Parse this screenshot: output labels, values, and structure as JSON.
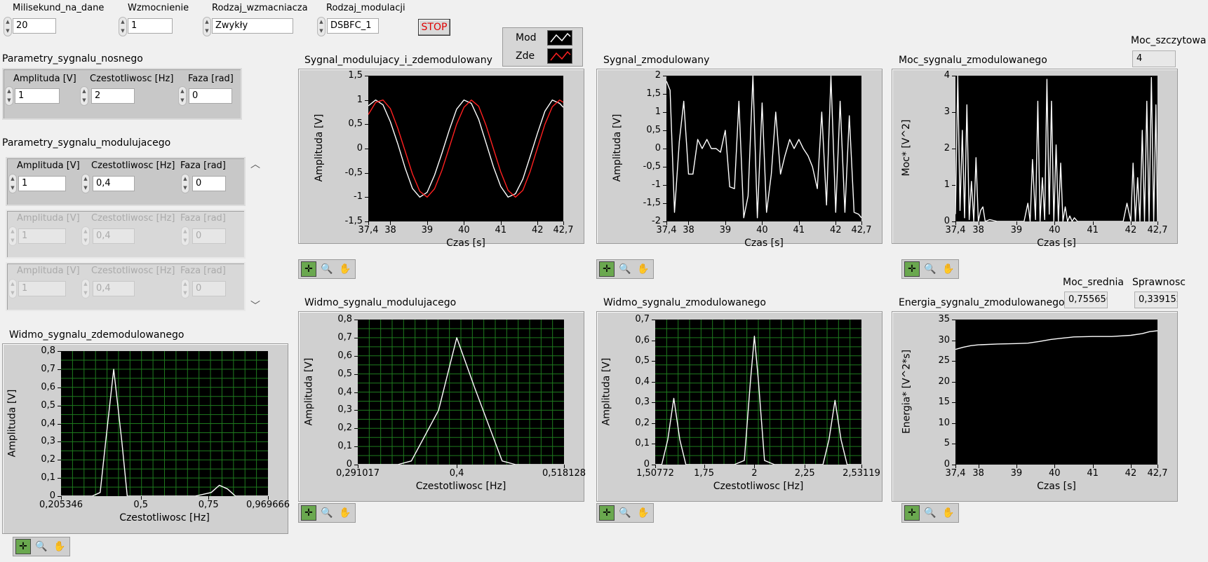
{
  "controls": {
    "milisekund": {
      "label": "Milisekund_na_dane",
      "value": "20"
    },
    "wzmocnienie": {
      "label": "Wzmocnienie",
      "value": "1"
    },
    "rodzaj_wzm": {
      "label": "Rodzaj_wzmacniacza",
      "value": "Zwykły"
    },
    "rodzaj_mod": {
      "label": "Rodzaj_modulacji",
      "value": "DSBFC_1"
    },
    "stop_label": "STOP"
  },
  "nosny": {
    "title": "Parametry_sygnalu_nosnego",
    "amp_label": "Amplituda [V]",
    "freq_label": "Czestotliwosc [Hz]",
    "phase_label": "Faza [rad]",
    "amp": "1",
    "freq": "2",
    "phase": "0"
  },
  "modulujacy": {
    "title": "Parametry_sygnalu_modulujacego",
    "rows": [
      {
        "amp_label": "Amplituda [V]",
        "freq_label": "Czestotliwosc [Hz]",
        "phase_label": "Faza [rad]",
        "amp": "1",
        "freq": "0,4",
        "phase": "0"
      },
      {
        "amp_label": "Amplituda [V]",
        "freq_label": "Czestotliwosc [Hz]",
        "phase_label": "Faza [rad]",
        "amp": "1",
        "freq": "0,4",
        "phase": "0"
      },
      {
        "amp_label": "Amplituda [V]",
        "freq_label": "Czestotliwosc [Hz]",
        "phase_label": "Faza [rad]",
        "amp": "1",
        "freq": "0,4",
        "phase": "0"
      }
    ]
  },
  "legend": {
    "items": [
      {
        "name": "Mod",
        "color": "#ffffff"
      },
      {
        "name": "Zde",
        "color": "#ff2020"
      }
    ]
  },
  "indicators": {
    "moc_szczytowa": {
      "label": "Moc_szczytowa",
      "value": "4"
    },
    "moc_srednia": {
      "label": "Moc_srednia",
      "value": "0,755656"
    },
    "sprawnosc": {
      "label": "Sprawnosc",
      "value": "0,339152"
    }
  },
  "palette_icons": [
    "crosshair-icon",
    "zoom-icon",
    "hand-icon"
  ],
  "chart_data": [
    {
      "id": "g1",
      "type": "line",
      "title": "Sygnal_modulujacy_i_zdemodulowany",
      "xlabel": "Czas [s]",
      "ylabel": "Amplituda [V]",
      "xlim": [
        37.4,
        42.7
      ],
      "ylim": [
        -1.5,
        1.5
      ],
      "xticks": [
        37.4,
        38,
        39,
        40,
        41,
        42,
        42.7
      ],
      "xtick_labels": [
        "37,4",
        "38",
        "39",
        "40",
        "41",
        "42",
        "42,7"
      ],
      "yticks": [
        1.5,
        1,
        0.5,
        0,
        -0.5,
        -1,
        -1.5
      ],
      "ytick_labels": [
        "1,5",
        "1",
        "0,5",
        "0",
        "-0,5",
        "-1",
        "-1,5"
      ],
      "grid": false,
      "series": [
        {
          "name": "Mod",
          "color": "#ffffff",
          "x": [
            37.4,
            37.6,
            37.8,
            38.0,
            38.2,
            38.4,
            38.6,
            38.8,
            39.0,
            39.2,
            39.4,
            39.6,
            39.8,
            40.0,
            40.2,
            40.4,
            40.6,
            40.8,
            41.0,
            41.2,
            41.4,
            41.6,
            41.8,
            42.0,
            42.2,
            42.4,
            42.6,
            42.7
          ],
          "y": [
            0.88,
            1.0,
            0.9,
            0.55,
            0.1,
            -0.4,
            -0.82,
            -1.0,
            -0.9,
            -0.55,
            -0.1,
            0.38,
            0.81,
            1.0,
            0.93,
            0.6,
            0.12,
            -0.37,
            -0.78,
            -1.0,
            -0.93,
            -0.63,
            -0.16,
            0.32,
            0.77,
            1.0,
            0.93,
            0.85
          ]
        },
        {
          "name": "Zde",
          "color": "#ff2020",
          "x": [
            37.4,
            37.6,
            37.8,
            38.0,
            38.2,
            38.4,
            38.6,
            38.8,
            39.0,
            39.2,
            39.4,
            39.6,
            39.8,
            40.0,
            40.2,
            40.4,
            40.6,
            40.8,
            41.0,
            41.2,
            41.4,
            41.6,
            41.8,
            42.0,
            42.2,
            42.4,
            42.6,
            42.7
          ],
          "y": [
            0.7,
            0.95,
            1.0,
            0.82,
            0.42,
            -0.05,
            -0.52,
            -0.88,
            -1.0,
            -0.83,
            -0.45,
            0.02,
            0.5,
            0.85,
            1.0,
            0.87,
            0.48,
            0.0,
            -0.48,
            -0.86,
            -1.0,
            -0.86,
            -0.47,
            0.02,
            0.5,
            0.86,
            1.0,
            0.95
          ]
        }
      ]
    },
    {
      "id": "g2",
      "type": "line",
      "title": "Sygnal_zmodulowany",
      "xlabel": "Czas [s]",
      "ylabel": "Amplituda [V]",
      "xlim": [
        37.4,
        42.7
      ],
      "ylim": [
        -2,
        2
      ],
      "xticks": [
        37.4,
        38,
        39,
        40,
        41,
        42,
        42.7
      ],
      "xtick_labels": [
        "37,4",
        "38",
        "39",
        "40",
        "41",
        "42",
        "42,7"
      ],
      "yticks": [
        2,
        1.5,
        1,
        0.5,
        0,
        -0.5,
        -1,
        -1.5,
        -2
      ],
      "ytick_labels": [
        "2",
        "1,5",
        "1",
        "0,5",
        "0",
        "-0,5",
        "-1",
        "-1,5",
        "-2"
      ],
      "grid": false,
      "series": [
        {
          "name": "",
          "color": "#ffffff",
          "x": [
            37.4,
            37.5,
            37.62,
            37.75,
            37.87,
            38.0,
            38.12,
            38.25,
            38.37,
            38.5,
            38.62,
            38.75,
            38.87,
            39.0,
            39.12,
            39.25,
            39.37,
            39.5,
            39.62,
            39.75,
            39.87,
            40.0,
            40.12,
            40.25,
            40.37,
            40.5,
            40.62,
            40.75,
            40.87,
            41.0,
            41.12,
            41.25,
            41.37,
            41.5,
            41.62,
            41.75,
            41.87,
            42.0,
            42.12,
            42.25,
            42.37,
            42.5,
            42.62,
            42.7
          ],
          "y": [
            1.85,
            1.6,
            -1.75,
            0.2,
            1.3,
            -0.7,
            -0.7,
            0.25,
            0.0,
            0.25,
            0.0,
            0.0,
            -0.1,
            0.5,
            -1.05,
            -1.1,
            1.3,
            -1.9,
            -1.3,
            2.0,
            -1.9,
            1.25,
            -1.75,
            -0.7,
            1.0,
            -0.7,
            -0.2,
            0.25,
            0.0,
            0.25,
            0.0,
            -0.2,
            -0.5,
            -1.1,
            1.0,
            -1.55,
            2.0,
            -1.75,
            1.3,
            -1.75,
            0.9,
            -1.75,
            -1.8,
            -1.9
          ]
        }
      ]
    },
    {
      "id": "g3",
      "type": "line",
      "title": "Moc_sygnalu_zmodulowanego",
      "xlabel": "Czas [s]",
      "ylabel": "Moc*  [V^2]",
      "xlim": [
        37.4,
        42.7
      ],
      "ylim": [
        0,
        4
      ],
      "xticks": [
        37.4,
        38,
        39,
        40,
        41,
        42,
        42.7
      ],
      "xtick_labels": [
        "37,4",
        "38",
        "39",
        "40",
        "41",
        "42",
        "42,7"
      ],
      "yticks": [
        4,
        3,
        2,
        1,
        0
      ],
      "ytick_labels": [
        "4",
        "3",
        "2",
        "1",
        "0"
      ],
      "grid": false,
      "series": [
        {
          "name": "",
          "color": "#ffffff",
          "x": [
            37.4,
            37.46,
            37.52,
            37.58,
            37.64,
            37.7,
            37.76,
            37.82,
            37.88,
            37.94,
            38.0,
            38.06,
            38.12,
            38.18,
            38.3,
            38.5,
            38.8,
            39.2,
            39.3,
            39.36,
            39.42,
            39.5,
            39.56,
            39.62,
            39.68,
            39.74,
            39.8,
            39.86,
            39.92,
            39.98,
            40.04,
            40.1,
            40.16,
            40.22,
            40.28,
            40.34,
            40.4,
            40.46,
            40.52,
            40.6,
            40.66,
            40.72,
            40.8,
            40.9,
            41.0,
            41.2,
            41.5,
            41.8,
            41.9,
            42.0,
            42.06,
            42.12,
            42.18,
            42.24,
            42.3,
            42.36,
            42.42,
            42.48,
            42.54,
            42.6,
            42.66,
            42.7
          ],
          "y": [
            0.2,
            4.0,
            0.3,
            2.5,
            0.1,
            3.2,
            0.05,
            1.1,
            0.0,
            1.75,
            0.0,
            0.3,
            0.4,
            0.0,
            0.05,
            0.0,
            0.0,
            0.0,
            0.5,
            0.0,
            1.7,
            0.05,
            3.3,
            0.0,
            1.2,
            0.05,
            3.9,
            0.2,
            3.3,
            0.0,
            2.1,
            0.0,
            1.6,
            0.0,
            0.4,
            0.0,
            0.15,
            0.0,
            0.1,
            0.0,
            0.0,
            0.0,
            0.0,
            0.0,
            0.0,
            0.0,
            0.0,
            0.0,
            0.5,
            0.0,
            1.6,
            0.0,
            1.2,
            0.0,
            2.5,
            0.0,
            3.3,
            0.0,
            3.95,
            0.0,
            3.2,
            0.0
          ]
        }
      ]
    },
    {
      "id": "g4",
      "type": "line",
      "title": "Widmo_sygnalu_zdemodulowanego",
      "xlabel": "Czestotliwosc [Hz]",
      "ylabel": "Amplituda [V]",
      "xlim": [
        0.205346,
        0.969666
      ],
      "ylim": [
        0,
        0.8
      ],
      "xticks": [
        0.205346,
        0.5,
        0.75,
        0.969666
      ],
      "xtick_labels": [
        "0,205346",
        "0,5",
        "0,75",
        "0,969666"
      ],
      "yticks": [
        0.8,
        0.7,
        0.6,
        0.5,
        0.4,
        0.3,
        0.2,
        0.1,
        0
      ],
      "ytick_labels": [
        "0,8",
        "0,7",
        "0,6",
        "0,5",
        "0,4",
        "0,3",
        "0,2",
        "0,1",
        "0"
      ],
      "grid": true,
      "series": [
        {
          "name": "",
          "color": "#ffffff",
          "x": [
            0.205346,
            0.32,
            0.35,
            0.37,
            0.4,
            0.43,
            0.45,
            0.5,
            0.7,
            0.76,
            0.79,
            0.82,
            0.85,
            0.969666
          ],
          "y": [
            0,
            0,
            0.02,
            0.3,
            0.7,
            0.3,
            0.0,
            0.0,
            0.0,
            0.02,
            0.06,
            0.04,
            0.0,
            0.0
          ]
        }
      ]
    },
    {
      "id": "g5",
      "type": "line",
      "title": "Widmo_sygnalu_modulujacego",
      "xlabel": "Czestotliwosc [Hz]",
      "ylabel": "Amplituda [V]",
      "xlim": [
        0.291017,
        0.518128
      ],
      "ylim": [
        0,
        0.8
      ],
      "xticks": [
        0.291017,
        0.4,
        0.518128
      ],
      "xtick_labels": [
        "0,291017",
        "0,4",
        "0,518128"
      ],
      "yticks": [
        0.8,
        0.7,
        0.6,
        0.5,
        0.4,
        0.3,
        0.2,
        0.1,
        0
      ],
      "ytick_labels": [
        "0,8",
        "0,7",
        "0,6",
        "0,5",
        "0,4",
        "0,3",
        "0,2",
        "0,1",
        "0"
      ],
      "grid": true,
      "series": [
        {
          "name": "",
          "color": "#ffffff",
          "x": [
            0.291017,
            0.335,
            0.35,
            0.38,
            0.4,
            0.42,
            0.45,
            0.465,
            0.518128
          ],
          "y": [
            0,
            0,
            0.02,
            0.3,
            0.7,
            0.42,
            0.02,
            0.0,
            0.0
          ]
        }
      ]
    },
    {
      "id": "g6",
      "type": "line",
      "title": "Widmo_sygnalu_zmodulowanego",
      "xlabel": "Czestotliwosc [Hz]",
      "ylabel": "Amplituda [V]",
      "xlim": [
        1.50772,
        2.53119
      ],
      "ylim": [
        0,
        0.7
      ],
      "xticks": [
        1.50772,
        1.75,
        2,
        2.25,
        2.53119
      ],
      "xtick_labels": [
        "1,50772",
        "1,75",
        "2",
        "2,25",
        "2,53119"
      ],
      "yticks": [
        0.7,
        0.6,
        0.5,
        0.4,
        0.3,
        0.2,
        0.1,
        0
      ],
      "ytick_labels": [
        "0,7",
        "0,6",
        "0,5",
        "0,4",
        "0,3",
        "0,2",
        "0,1",
        "0"
      ],
      "grid": true,
      "series": [
        {
          "name": "",
          "color": "#ffffff",
          "x": [
            1.50772,
            1.54,
            1.57,
            1.6,
            1.63,
            1.66,
            1.9,
            1.95,
            1.98,
            2.0,
            2.02,
            2.05,
            2.1,
            2.34,
            2.37,
            2.4,
            2.43,
            2.46,
            2.53119
          ],
          "y": [
            0,
            0,
            0.12,
            0.32,
            0.12,
            0.0,
            0.0,
            0.02,
            0.4,
            0.62,
            0.4,
            0.02,
            0.0,
            0.0,
            0.12,
            0.31,
            0.12,
            0.0,
            0.0
          ]
        }
      ]
    },
    {
      "id": "g7",
      "type": "line",
      "title": "Energia_sygnalu_zmodulowanego",
      "xlabel": "Czas [s]",
      "ylabel": "Energia*  [V^2*s]",
      "xlim": [
        37.4,
        42.7
      ],
      "ylim": [
        0,
        35
      ],
      "xticks": [
        37.4,
        38,
        39,
        40,
        41,
        42,
        42.7
      ],
      "xtick_labels": [
        "37,4",
        "38",
        "39",
        "40",
        "41",
        "42",
        "42,7"
      ],
      "yticks": [
        35,
        30,
        25,
        20,
        15,
        10,
        5,
        0
      ],
      "ytick_labels": [
        "35",
        "30",
        "25",
        "20",
        "15",
        "10",
        "5",
        "0"
      ],
      "grid": false,
      "series": [
        {
          "name": "",
          "color": "#ffffff",
          "x": [
            37.4,
            37.6,
            37.8,
            38.0,
            38.5,
            39.0,
            39.3,
            39.6,
            39.9,
            40.2,
            40.5,
            41.0,
            41.5,
            42.0,
            42.3,
            42.5,
            42.7
          ],
          "y": [
            27.8,
            28.3,
            28.7,
            28.9,
            29.1,
            29.2,
            29.3,
            29.7,
            30.2,
            30.5,
            30.8,
            30.9,
            30.9,
            31.2,
            31.6,
            32.1,
            32.3
          ]
        }
      ]
    }
  ]
}
